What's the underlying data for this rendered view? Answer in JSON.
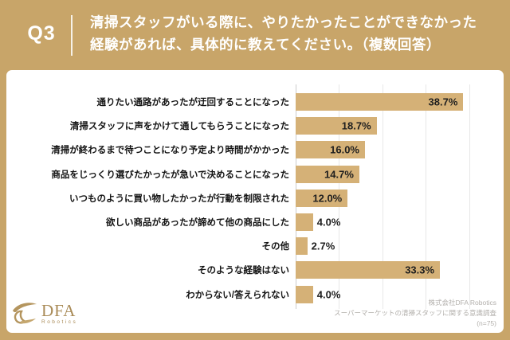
{
  "header": {
    "q_label": "Q3",
    "title_line1": "清掃スタッフがいる際に、やりたかったことができなかった",
    "title_line2": "経験があれば、具体的に教えてください。（複数回答）"
  },
  "chart_data": {
    "type": "bar",
    "orientation": "horizontal",
    "title": "清掃スタッフがいる際に、やりたかったことができなかった経験があれば、具体的に教えてください。（複数回答）",
    "categories": [
      "通りたい通路があったが迂回することになった",
      "清掃スタッフに声をかけて通してもらうことになった",
      "清掃が終わるまで待つことになり予定より時間がかかった",
      "商品をじっくり選びたかったが急いで決めることになった",
      "いつものように買い物したかったが行動を制限された",
      "欲しい商品があったが諦めて他の商品にした",
      "その他",
      "そのような経験はない",
      "わからない/答えられない"
    ],
    "values": [
      38.7,
      18.7,
      16.0,
      14.7,
      12.0,
      4.0,
      2.7,
      33.3,
      4.0
    ],
    "value_labels": [
      "38.7%",
      "18.7%",
      "16.0%",
      "14.7%",
      "12.0%",
      "4.0%",
      "2.7%",
      "33.3%",
      "4.0%"
    ],
    "xlim": [
      0,
      48
    ],
    "gridline_step": 10,
    "grid": true,
    "legend": false,
    "bar_color": "#d5b177",
    "grid_color": "#e8e8e8",
    "axis_color": "#cccccc",
    "value_color": "#1f1f1f"
  },
  "footer": {
    "logo": {
      "mark": "dfa-swoosh-logo",
      "name": "DFA",
      "subtitle": "Robotics"
    },
    "source_line1": "株式会社DFA Robotics",
    "source_line2": "スーパーマーケットの清掃スタッフに関する意識調査",
    "source_line3": "(n=75)"
  },
  "colors": {
    "page_background": "#c8a569",
    "panel_background": "#ffffff",
    "header_text": "#ffffff",
    "logo_gold": "#a98b57"
  }
}
